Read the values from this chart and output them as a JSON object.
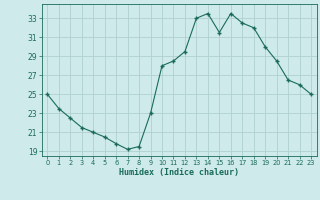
{
  "x": [
    0,
    1,
    2,
    3,
    4,
    5,
    6,
    7,
    8,
    9,
    10,
    11,
    12,
    13,
    14,
    15,
    16,
    17,
    18,
    19,
    20,
    21,
    22,
    23
  ],
  "y": [
    25.0,
    23.5,
    22.5,
    21.5,
    21.0,
    20.5,
    19.8,
    19.2,
    19.5,
    23.0,
    28.0,
    28.5,
    29.5,
    33.0,
    33.5,
    31.5,
    33.5,
    32.5,
    32.0,
    30.0,
    28.5,
    26.5,
    26.0,
    25.0
  ],
  "xlabel": "Humidex (Indice chaleur)",
  "bg_color": "#ceeaea",
  "line_color": "#1a6b5a",
  "marker_color": "#1a6b5a",
  "grid_color": "#b0cfcf",
  "text_color": "#1a6b5a",
  "ylim": [
    18.5,
    34.5
  ],
  "xlim": [
    -0.5,
    23.5
  ],
  "yticks": [
    19,
    21,
    23,
    25,
    27,
    29,
    31,
    33
  ],
  "xticks": [
    0,
    1,
    2,
    3,
    4,
    5,
    6,
    7,
    8,
    9,
    10,
    11,
    12,
    13,
    14,
    15,
    16,
    17,
    18,
    19,
    20,
    21,
    22,
    23
  ]
}
